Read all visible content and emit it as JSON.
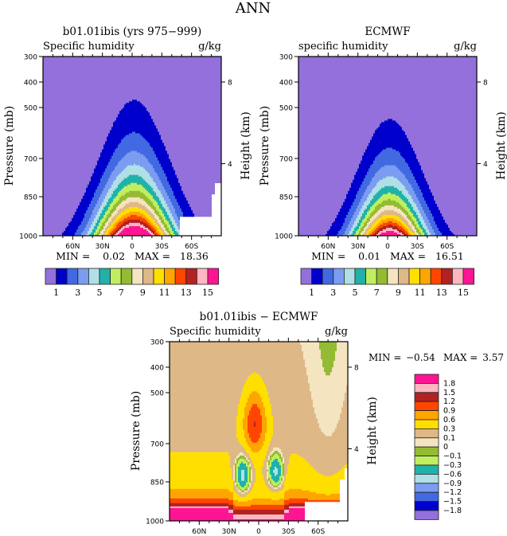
{
  "figure_title": "ANN",
  "chart_data": [
    {
      "type": "heatmap",
      "subtype": "filled-contour",
      "title": "b01.01ibis (yrs 975−999)",
      "left_label": "Specific humidity",
      "right_label": "g/kg",
      "ylabel": "Pressure (mb)",
      "ylabel_right": "Height (km)",
      "x_ticks": [
        "60N",
        "30N",
        "0",
        "30S",
        "60S"
      ],
      "y_ticks": [
        "300",
        "400",
        "500",
        "700",
        "850",
        "1000"
      ],
      "y_right_ticks": [
        "8",
        "4"
      ],
      "ylim": [
        1000,
        300
      ],
      "xlim": [
        "90N",
        "90S"
      ],
      "stats_text": "MIN =    0.02   MAX =   18.36",
      "min": 0.02,
      "max": 18.36,
      "levels": [
        1,
        2,
        3,
        4,
        5,
        6,
        7,
        8,
        9,
        10,
        11,
        12,
        13,
        14,
        15
      ],
      "colorbar_labels": [
        "1",
        "3",
        "5",
        "7",
        "9",
        "11",
        "13",
        "15"
      ],
      "peak_lat_deg": 0,
      "notes": "moisture maximum near the surface at the equator, decreasing with height and latitude"
    },
    {
      "type": "heatmap",
      "subtype": "filled-contour",
      "title": "ECMWF",
      "left_label": "specific humidity",
      "right_label": "g/kg",
      "ylabel": "Pressure (mb)",
      "ylabel_right": "Height (km)",
      "x_ticks": [
        "60N",
        "30N",
        "0",
        "30S",
        "60S"
      ],
      "y_ticks": [
        "300",
        "400",
        "500",
        "700",
        "850",
        "1000"
      ],
      "y_right_ticks": [
        "8",
        "4"
      ],
      "ylim": [
        1000,
        300
      ],
      "xlim": [
        "90N",
        "90S"
      ],
      "stats_text": "MIN =    0.01   MAX =   16.51",
      "min": 0.01,
      "max": 16.51,
      "levels": [
        1,
        2,
        3,
        4,
        5,
        6,
        7,
        8,
        9,
        10,
        11,
        12,
        13,
        14,
        15
      ],
      "colorbar_labels": [
        "1",
        "3",
        "5",
        "7",
        "9",
        "11",
        "13",
        "15"
      ]
    },
    {
      "type": "heatmap",
      "subtype": "filled-contour",
      "title": "b01.01ibis − ECMWF",
      "left_label": "Specific humidity",
      "right_label": "g/kg",
      "ylabel": "Pressure (mb)",
      "ylabel_right": "Height (km)",
      "x_ticks": [
        "60N",
        "30N",
        "0",
        "30S",
        "60S"
      ],
      "y_ticks": [
        "300",
        "400",
        "500",
        "700",
        "850",
        "1000"
      ],
      "y_right_ticks": [
        "8",
        "4"
      ],
      "ylim": [
        1000,
        300
      ],
      "xlim": [
        "90N",
        "90S"
      ],
      "stats_min_label": "MIN =",
      "stats_min_value": "−0.54",
      "stats_max_label": "MAX =",
      "stats_max_value": "3.57",
      "min": -0.54,
      "max": 3.57,
      "levels": [
        -1.8,
        -1.5,
        -1.2,
        -0.9,
        -0.6,
        -0.3,
        -0.1,
        0,
        0.1,
        0.3,
        0.6,
        0.9,
        1.2,
        1.5,
        1.8
      ],
      "colorbar_labels": [
        "1.8",
        "1.5",
        "1.2",
        "0.9",
        "0.6",
        "0.3",
        "0.1",
        "0",
        "−0.1",
        "−0.3",
        "−0.6",
        "−0.9",
        "−1.2",
        "−1.5",
        "−1.8"
      ]
    }
  ],
  "palette": [
    "#9370DB",
    "#0000CD",
    "#4169E1",
    "#7B9CF0",
    "#B0E0E6",
    "#20B2AA",
    "#BFEF5F",
    "#94BB33",
    "#F5E4C0",
    "#DEB887",
    "#FFDF00",
    "#FFA500",
    "#FF4500",
    "#B22222",
    "#FFB6C1",
    "#FF1493"
  ]
}
